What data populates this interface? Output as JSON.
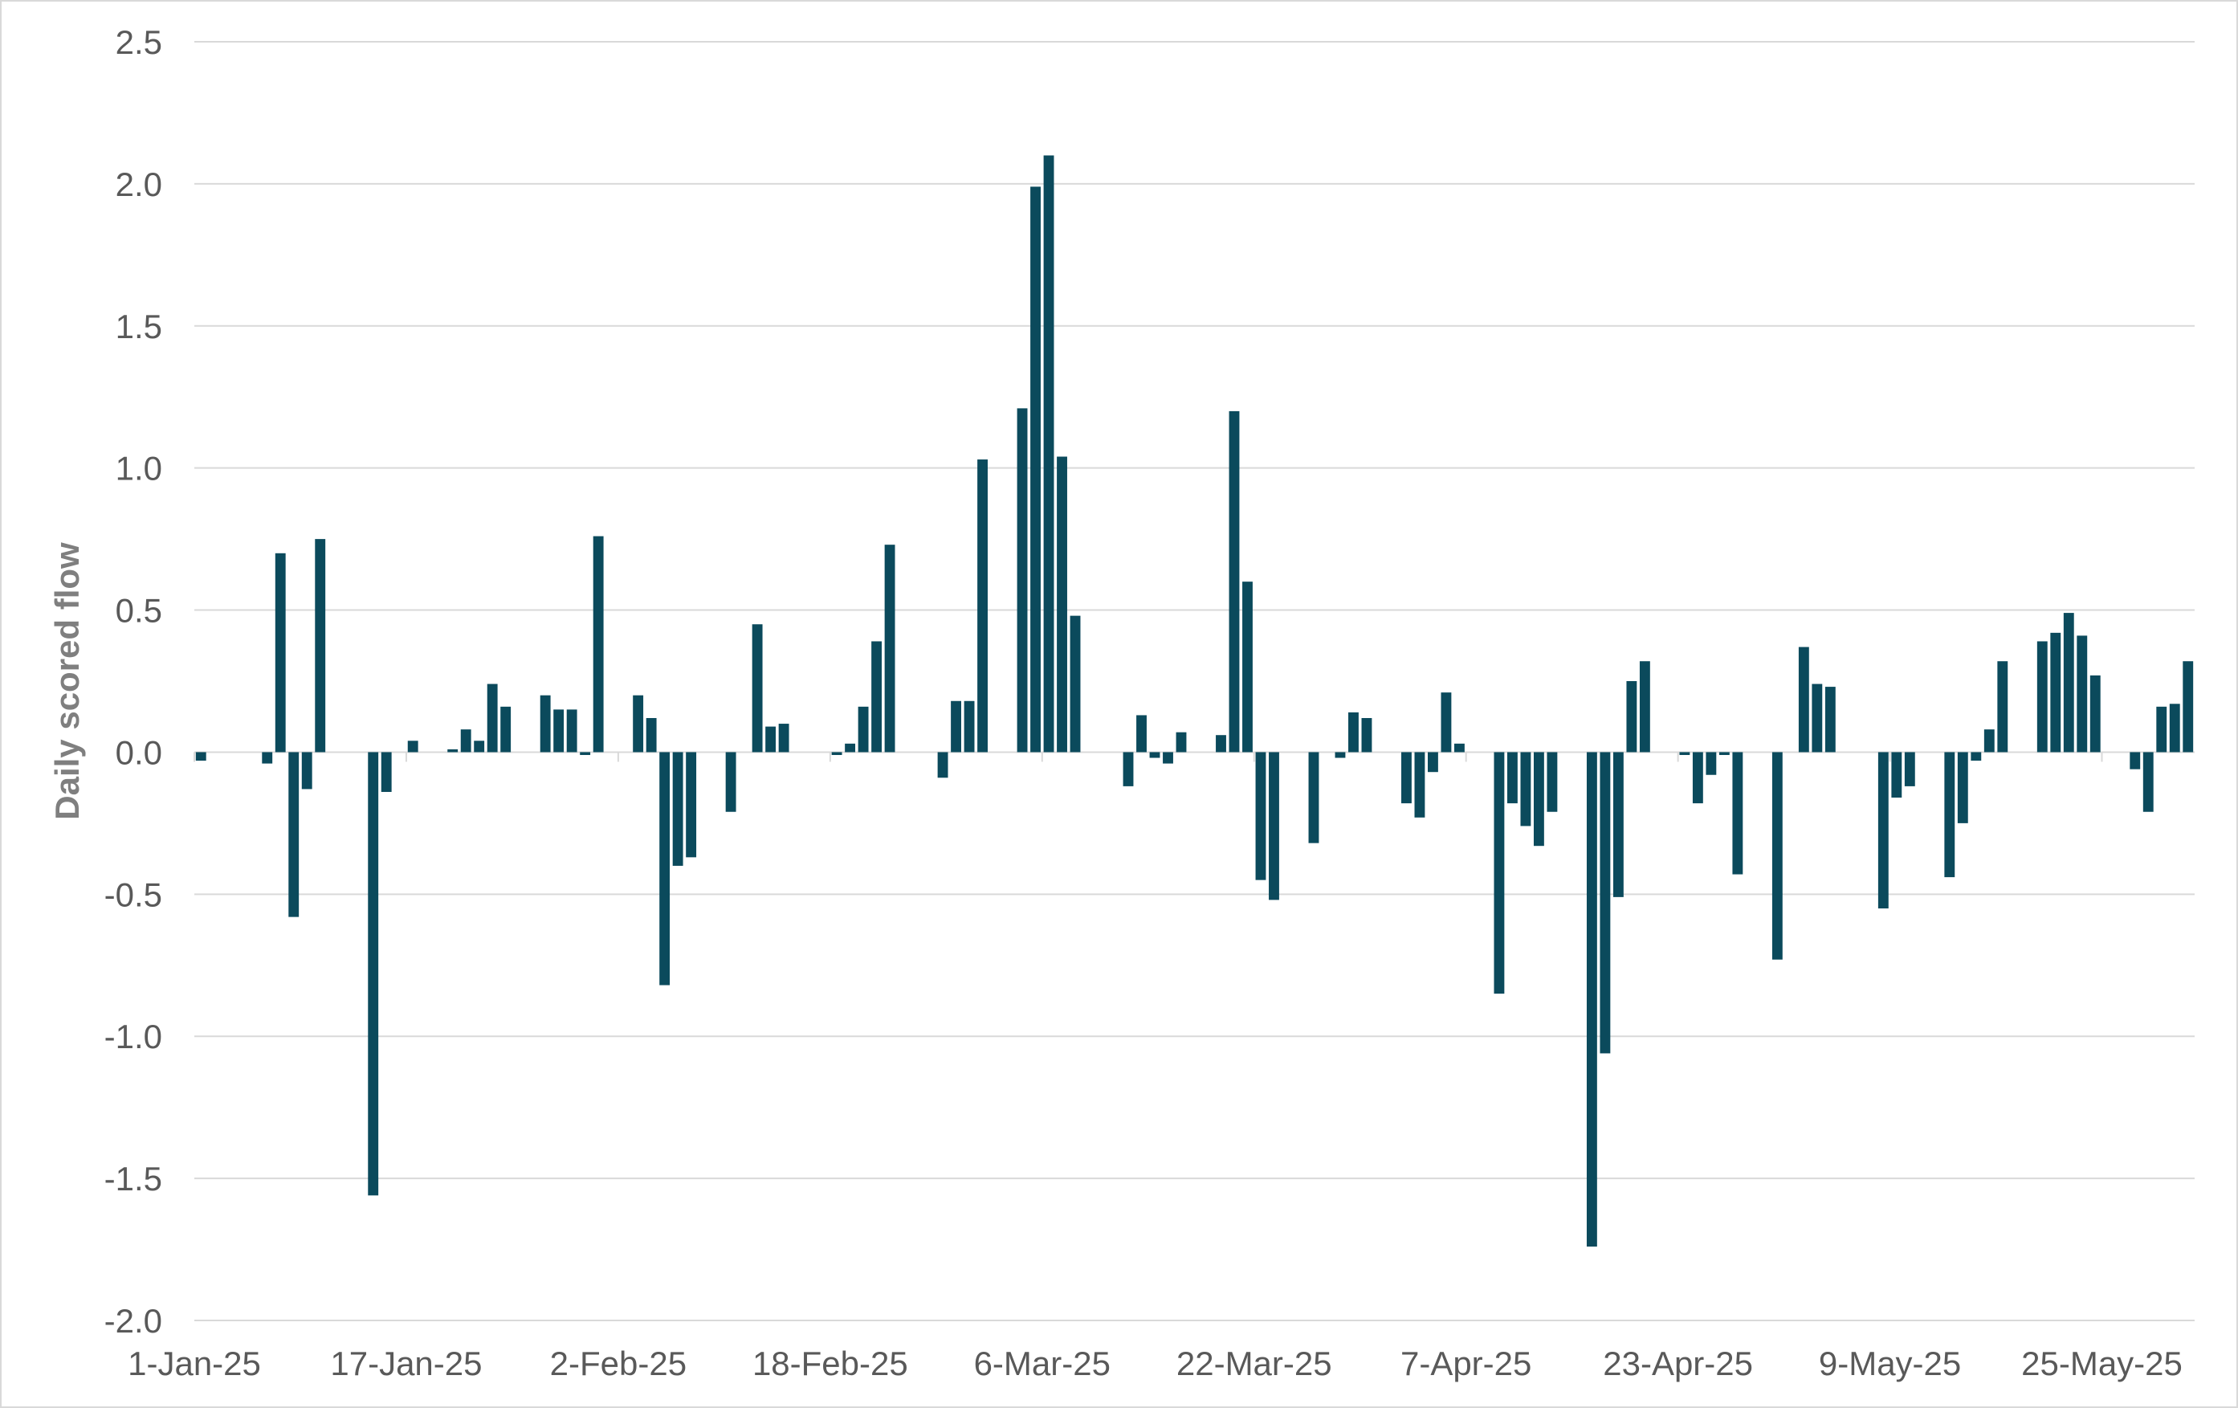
{
  "chart_data": {
    "type": "bar",
    "title": "",
    "ylabel": "Daily scored flow",
    "xlabel": "",
    "ylim": [
      -2.0,
      2.5
    ],
    "yticks": [
      "2.5",
      "2.0",
      "1.5",
      "1.0",
      "0.5",
      "0.0",
      "-0.5",
      "-1.0",
      "-1.5",
      "-2.0"
    ],
    "ytick_values": [
      2.5,
      2.0,
      1.5,
      1.0,
      0.5,
      0.0,
      -0.5,
      -1.0,
      -1.5,
      -2.0
    ],
    "xtick_labels": [
      "1-Jan-25",
      "17-Jan-25",
      "2-Feb-25",
      "18-Feb-25",
      "6-Mar-25",
      "22-Mar-25",
      "7-Apr-25",
      "23-Apr-25",
      "9-May-25",
      "25-May-25"
    ],
    "xtick_dates": [
      "2025-01-01",
      "2025-01-17",
      "2025-02-02",
      "2025-02-18",
      "2025-03-06",
      "2025-03-22",
      "2025-04-07",
      "2025-04-23",
      "2025-05-09",
      "2025-05-25"
    ],
    "x_range": [
      "2025-01-01",
      "2025-05-31"
    ],
    "bar_color": "#0b4a5c",
    "grid": true,
    "series": [
      {
        "values": [
          {
            "date": "2025-01-01",
            "value": -0.03
          },
          {
            "date": "2025-01-06",
            "value": -0.04
          },
          {
            "date": "2025-01-07",
            "value": 0.7
          },
          {
            "date": "2025-01-08",
            "value": -0.58
          },
          {
            "date": "2025-01-09",
            "value": -0.13
          },
          {
            "date": "2025-01-10",
            "value": 0.75
          },
          {
            "date": "2025-01-14",
            "value": -1.56
          },
          {
            "date": "2025-01-15",
            "value": -0.14
          },
          {
            "date": "2025-01-17",
            "value": 0.04
          },
          {
            "date": "2025-01-20",
            "value": 0.01
          },
          {
            "date": "2025-01-21",
            "value": 0.08
          },
          {
            "date": "2025-01-22",
            "value": 0.04
          },
          {
            "date": "2025-01-23",
            "value": 0.24
          },
          {
            "date": "2025-01-24",
            "value": 0.16
          },
          {
            "date": "2025-01-27",
            "value": 0.2
          },
          {
            "date": "2025-01-28",
            "value": 0.15
          },
          {
            "date": "2025-01-29",
            "value": 0.15
          },
          {
            "date": "2025-01-30",
            "value": -0.01
          },
          {
            "date": "2025-01-31",
            "value": 0.76
          },
          {
            "date": "2025-02-03",
            "value": 0.2
          },
          {
            "date": "2025-02-04",
            "value": 0.12
          },
          {
            "date": "2025-02-05",
            "value": -0.82
          },
          {
            "date": "2025-02-06",
            "value": -0.4
          },
          {
            "date": "2025-02-07",
            "value": -0.37
          },
          {
            "date": "2025-02-10",
            "value": -0.21
          },
          {
            "date": "2025-02-12",
            "value": 0.45
          },
          {
            "date": "2025-02-13",
            "value": 0.09
          },
          {
            "date": "2025-02-14",
            "value": 0.1
          },
          {
            "date": "2025-02-18",
            "value": -0.01
          },
          {
            "date": "2025-02-19",
            "value": 0.03
          },
          {
            "date": "2025-02-20",
            "value": 0.16
          },
          {
            "date": "2025-02-21",
            "value": 0.39
          },
          {
            "date": "2025-02-22",
            "value": 0.73
          },
          {
            "date": "2025-02-26",
            "value": -0.09
          },
          {
            "date": "2025-02-27",
            "value": 0.18
          },
          {
            "date": "2025-02-28",
            "value": 0.18
          },
          {
            "date": "2025-03-01",
            "value": 1.03
          },
          {
            "date": "2025-03-04",
            "value": 1.21
          },
          {
            "date": "2025-03-05",
            "value": 1.99
          },
          {
            "date": "2025-03-06",
            "value": 2.1
          },
          {
            "date": "2025-03-07",
            "value": 1.04
          },
          {
            "date": "2025-03-08",
            "value": 0.48
          },
          {
            "date": "2025-03-12",
            "value": -0.12
          },
          {
            "date": "2025-03-13",
            "value": 0.13
          },
          {
            "date": "2025-03-14",
            "value": -0.02
          },
          {
            "date": "2025-03-15",
            "value": -0.04
          },
          {
            "date": "2025-03-16",
            "value": 0.07
          },
          {
            "date": "2025-03-19",
            "value": 0.06
          },
          {
            "date": "2025-03-20",
            "value": 1.2
          },
          {
            "date": "2025-03-21",
            "value": 0.6
          },
          {
            "date": "2025-03-22",
            "value": -0.45
          },
          {
            "date": "2025-03-23",
            "value": -0.52
          },
          {
            "date": "2025-03-26",
            "value": -0.32
          },
          {
            "date": "2025-03-28",
            "value": -0.02
          },
          {
            "date": "2025-03-29",
            "value": 0.14
          },
          {
            "date": "2025-03-30",
            "value": 0.12
          },
          {
            "date": "2025-04-02",
            "value": -0.18
          },
          {
            "date": "2025-04-03",
            "value": -0.23
          },
          {
            "date": "2025-04-04",
            "value": -0.07
          },
          {
            "date": "2025-04-05",
            "value": 0.21
          },
          {
            "date": "2025-04-06",
            "value": 0.03
          },
          {
            "date": "2025-04-09",
            "value": -0.85
          },
          {
            "date": "2025-04-10",
            "value": -0.18
          },
          {
            "date": "2025-04-11",
            "value": -0.26
          },
          {
            "date": "2025-04-12",
            "value": -0.33
          },
          {
            "date": "2025-04-13",
            "value": -0.21
          },
          {
            "date": "2025-04-16",
            "value": -1.74
          },
          {
            "date": "2025-04-17",
            "value": -1.06
          },
          {
            "date": "2025-04-18",
            "value": -0.51
          },
          {
            "date": "2025-04-19",
            "value": 0.25
          },
          {
            "date": "2025-04-20",
            "value": 0.32
          },
          {
            "date": "2025-04-23",
            "value": -0.01
          },
          {
            "date": "2025-04-24",
            "value": -0.18
          },
          {
            "date": "2025-04-25",
            "value": -0.08
          },
          {
            "date": "2025-04-26",
            "value": -0.01
          },
          {
            "date": "2025-04-27",
            "value": -0.43
          },
          {
            "date": "2025-04-30",
            "value": -0.73
          },
          {
            "date": "2025-05-02",
            "value": 0.37
          },
          {
            "date": "2025-05-03",
            "value": 0.24
          },
          {
            "date": "2025-05-04",
            "value": 0.23
          },
          {
            "date": "2025-05-08",
            "value": -0.55
          },
          {
            "date": "2025-05-09",
            "value": -0.16
          },
          {
            "date": "2025-05-10",
            "value": -0.12
          },
          {
            "date": "2025-05-13",
            "value": -0.44
          },
          {
            "date": "2025-05-14",
            "value": -0.25
          },
          {
            "date": "2025-05-15",
            "value": -0.03
          },
          {
            "date": "2025-05-16",
            "value": 0.08
          },
          {
            "date": "2025-05-17",
            "value": 0.32
          },
          {
            "date": "2025-05-20",
            "value": 0.39
          },
          {
            "date": "2025-05-21",
            "value": 0.42
          },
          {
            "date": "2025-05-22",
            "value": 0.49
          },
          {
            "date": "2025-05-23",
            "value": 0.41
          },
          {
            "date": "2025-05-24",
            "value": 0.27
          },
          {
            "date": "2025-05-27",
            "value": -0.06
          },
          {
            "date": "2025-05-28",
            "value": -0.21
          },
          {
            "date": "2025-05-29",
            "value": 0.16
          },
          {
            "date": "2025-05-30",
            "value": 0.17
          },
          {
            "date": "2025-05-31",
            "value": 0.32
          }
        ]
      }
    ]
  }
}
